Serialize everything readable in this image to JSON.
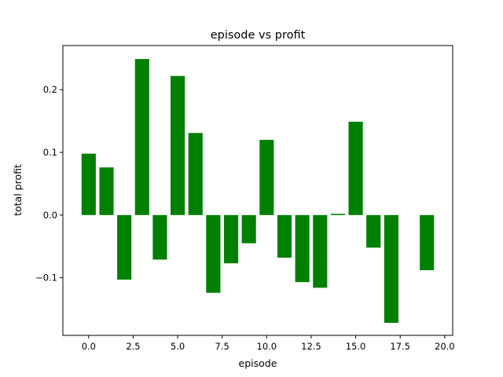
{
  "chart_data": {
    "type": "bar",
    "title": "episode vs profit",
    "xlabel": "episode",
    "ylabel": "total profit",
    "x": [
      0,
      1,
      2,
      3,
      4,
      5,
      6,
      7,
      8,
      9,
      10,
      11,
      12,
      13,
      14,
      15,
      16,
      17,
      18,
      19
    ],
    "values": [
      0.098,
      0.076,
      -0.103,
      0.249,
      -0.071,
      0.222,
      0.131,
      -0.124,
      -0.077,
      -0.045,
      0.12,
      -0.068,
      -0.107,
      -0.116,
      0.002,
      0.149,
      -0.052,
      -0.172,
      0.0,
      -0.088
    ],
    "xlim": [
      -1.45,
      20.45
    ],
    "ylim": [
      -0.192,
      0.2705
    ],
    "xticks": [
      0.0,
      2.5,
      5.0,
      7.5,
      10.0,
      12.5,
      15.0,
      17.5,
      20.0
    ],
    "xtick_labels": [
      "0.0",
      "2.5",
      "5.0",
      "7.5",
      "10.0",
      "12.5",
      "15.0",
      "17.5",
      "20.0"
    ],
    "yticks": [
      -0.1,
      0.0,
      0.1,
      0.2
    ],
    "ytick_labels": [
      "−0.1",
      "0.0",
      "0.1",
      "0.2"
    ],
    "bar_color": "#008000",
    "grid": false,
    "legend": "none"
  }
}
